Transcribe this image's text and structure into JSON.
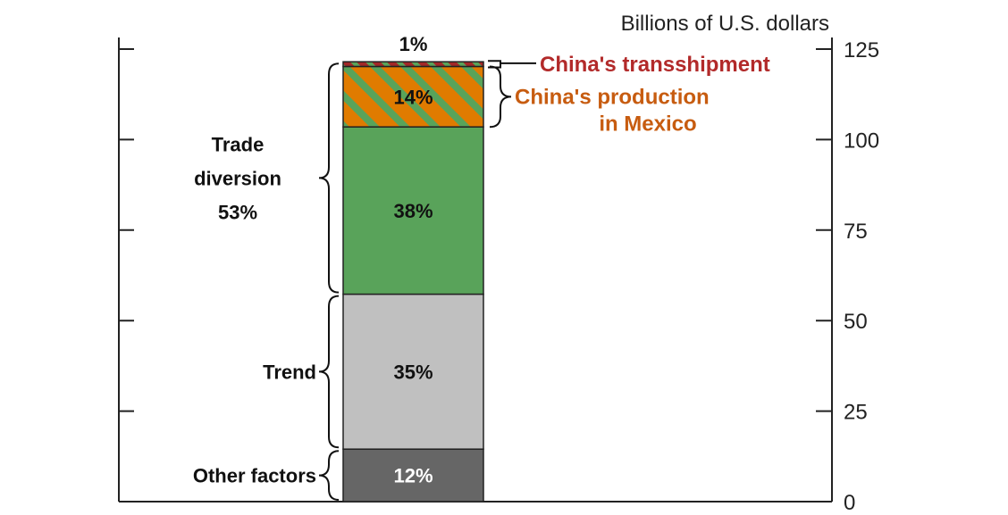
{
  "chart_data": {
    "type": "bar",
    "ylabel": "Billions of U.S. dollars",
    "ylim": [
      0,
      125
    ],
    "yticks": [
      0,
      25,
      50,
      75,
      100,
      125
    ],
    "segments": [
      {
        "name": "Other factors",
        "value": 14.5,
        "label": "12%",
        "color": "#666666"
      },
      {
        "name": "Trend",
        "value": 42.8,
        "label": "35%",
        "color": "#c0c0c0"
      },
      {
        "name": "Trade diversion (other)",
        "value": 46.2,
        "label": "38%",
        "color": "#59a35a"
      },
      {
        "name": "China's production in Mexico",
        "value": 16.7,
        "label": "14%",
        "color": "#e07b00",
        "stripe": "#59a35a"
      },
      {
        "name": "China's transshipment",
        "value": 1.3,
        "label": "1%",
        "color": "#a32828",
        "stripe": "#59a35a"
      }
    ],
    "groups": [
      {
        "label_lines": [
          "Other factors"
        ],
        "start": 0,
        "end": 14.5
      },
      {
        "label_lines": [
          "Trend"
        ],
        "start": 14.5,
        "end": 57.3
      },
      {
        "label_lines": [
          "Trade",
          "diversion",
          "53%"
        ],
        "start": 57.3,
        "end": 121.5
      }
    ],
    "callouts": [
      {
        "label_lines": [
          "China's transshipment"
        ],
        "color": "#b22a2a",
        "start": 120.2,
        "end": 121.5
      },
      {
        "label_lines": [
          "China's production",
          "in Mexico"
        ],
        "color": "#c75c10",
        "start": 103.5,
        "end": 120.2
      }
    ]
  }
}
